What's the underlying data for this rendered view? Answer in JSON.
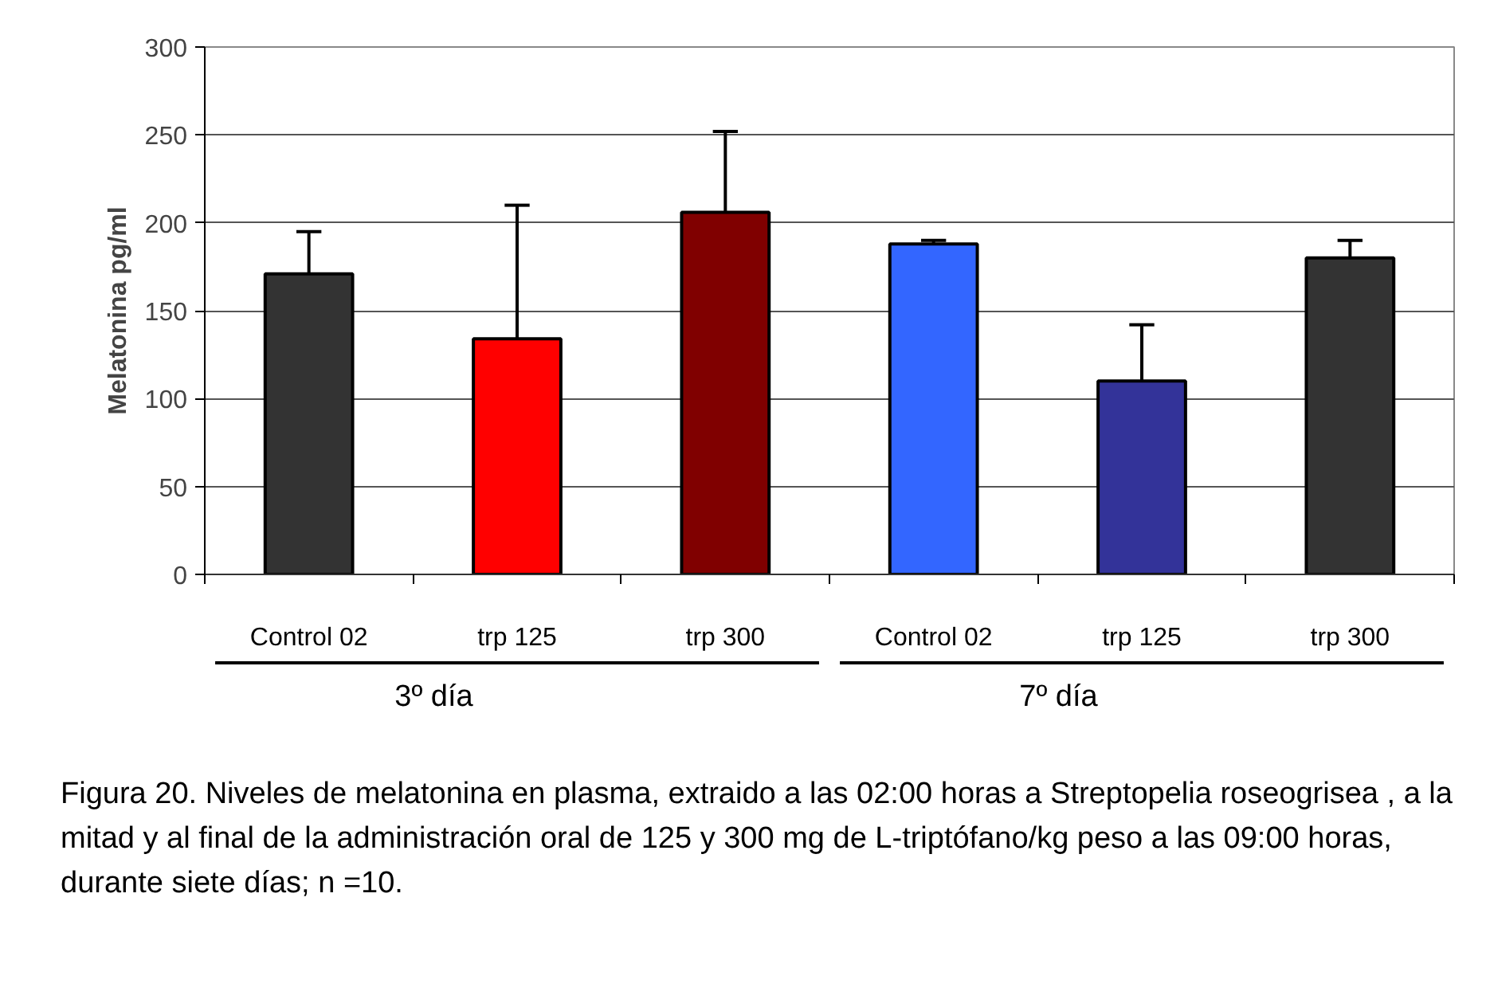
{
  "chart_data": {
    "type": "bar",
    "ylabel": "Melatonina pg/ml",
    "categories": [
      "Control 02",
      "trp 125",
      "trp 300",
      "Control 02",
      "trp 125",
      "trp 300"
    ],
    "values": [
      171,
      134,
      206,
      188,
      110,
      180
    ],
    "colors": [
      "#333333",
      "#ff0000",
      "#800000",
      "#3366ff",
      "#333399",
      "#333333"
    ],
    "errors": [
      [
        171,
        195
      ],
      [
        134,
        210
      ],
      [
        206,
        252
      ],
      [
        188,
        190
      ],
      [
        110,
        142
      ],
      [
        180,
        190
      ]
    ],
    "ylim": [
      0,
      300
    ],
    "yticks": [
      0,
      50,
      100,
      150,
      200,
      250,
      300
    ],
    "grid": "y",
    "annotations": [
      "3º día",
      "7º día",
      "Figura 20. Niveles de melatonina en plasma, extraido a las 02:00 horas a Streptopelia roseogrisea , a la mitad y al final de la administración oral de 125 y 300 mg de L-triptófano/kg peso a las 09:00 horas, durante siete días; n =10."
    ]
  }
}
